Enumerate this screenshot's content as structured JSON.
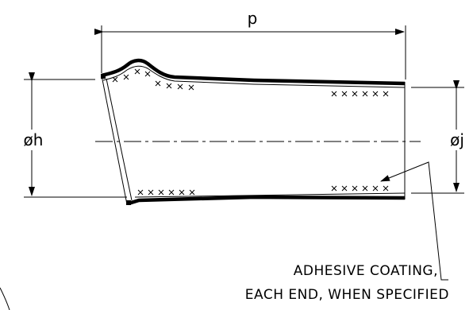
{
  "dimensions": {
    "length_label": "p",
    "left_diameter_label": "øh",
    "right_diameter_label": "øj"
  },
  "note": {
    "line1": "ADHESIVE COATING,",
    "line2": "EACH END, WHEN SPECIFIED"
  },
  "colors": {
    "stroke": "#000000",
    "background": "#ffffff"
  }
}
